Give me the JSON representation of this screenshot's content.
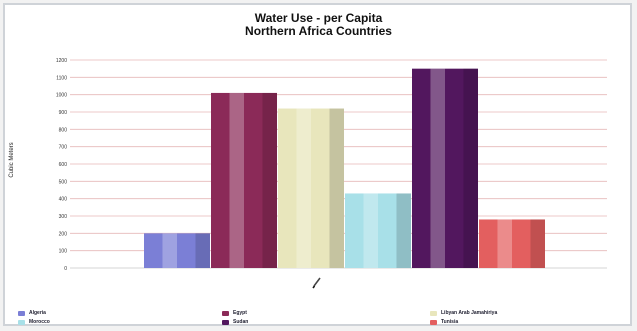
{
  "chart_data": {
    "type": "bar",
    "title": "Water Use - per Capita",
    "subtitle": "Northern Africa Countries",
    "ylabel": "Cubic Meters",
    "ylabel_right": "",
    "xlabel": "",
    "ylim": [
      0,
      1200
    ],
    "yticks": [
      0,
      100,
      200,
      300,
      400,
      500,
      600,
      700,
      800,
      900,
      1000,
      1100,
      1200
    ],
    "grid": true,
    "legend_position": "bottom",
    "series": [
      {
        "name": "Algeria",
        "value": 200,
        "color": "#7b7fd6"
      },
      {
        "name": "Egypt",
        "value": 1010,
        "color": "#8b2a58"
      },
      {
        "name": "Libyan Arab Jamahiriya",
        "value": 920,
        "color": "#e8e6bc"
      },
      {
        "name": "Morocco",
        "value": 430,
        "color": "#a8e0e8"
      },
      {
        "name": "Sudan",
        "value": 1150,
        "color": "#52175e"
      },
      {
        "name": "Tunisia",
        "value": 280,
        "color": "#e35f5f"
      }
    ]
  }
}
